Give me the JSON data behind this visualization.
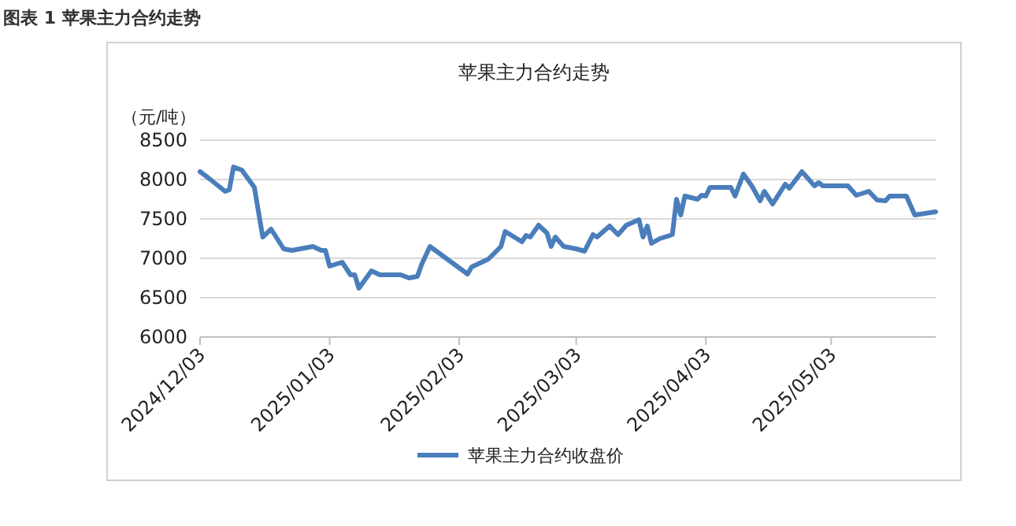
{
  "chart_data": {
    "type": "line",
    "title": "苹果主力合约走势",
    "ylabel": "（元/吨）",
    "annotations": [
      "图表 1  苹果主力合约走势"
    ],
    "x": [
      "2024-12-03",
      "2024-12-05",
      "2024-12-09",
      "2024-12-10",
      "2024-12-11",
      "2024-12-13",
      "2024-12-16",
      "2024-12-18",
      "2024-12-20",
      "2024-12-23",
      "2024-12-25",
      "2024-12-27",
      "2024-12-30",
      "2025-01-01",
      "2025-01-02",
      "2025-01-03",
      "2025-01-06",
      "2025-01-08",
      "2025-01-09",
      "2025-01-10",
      "2025-01-13",
      "2025-01-15",
      "2025-01-20",
      "2025-01-22",
      "2025-01-24",
      "2025-01-25",
      "2025-01-27",
      "2025-02-05",
      "2025-02-06",
      "2025-02-10",
      "2025-02-13",
      "2025-02-14",
      "2025-02-18",
      "2025-02-19",
      "2025-02-20",
      "2025-02-22",
      "2025-02-24",
      "2025-02-25",
      "2025-02-26",
      "2025-02-28",
      "2025-03-03",
      "2025-03-05",
      "2025-03-07",
      "2025-03-08",
      "2025-03-11",
      "2025-03-13",
      "2025-03-15",
      "2025-03-18",
      "2025-03-19",
      "2025-03-20",
      "2025-03-21",
      "2025-03-23",
      "2025-03-26",
      "2025-03-27",
      "2025-03-28",
      "2025-03-29",
      "2025-04-01",
      "2025-04-02",
      "2025-04-03",
      "2025-04-04",
      "2025-04-09",
      "2025-04-10",
      "2025-04-12",
      "2025-04-14",
      "2025-04-16",
      "2025-04-17",
      "2025-04-19",
      "2025-04-22",
      "2025-04-23",
      "2025-04-26",
      "2025-04-29",
      "2025-04-30",
      "2025-05-01",
      "2025-05-07",
      "2025-05-09",
      "2025-05-12",
      "2025-05-14",
      "2025-05-16",
      "2025-05-17",
      "2025-05-21",
      "2025-05-23",
      "2025-05-28"
    ],
    "series": [
      {
        "name": "苹果主力合约收盘价",
        "color": "#4a7ebb",
        "values": [
          8100,
          8020,
          7850,
          7870,
          8160,
          8120,
          7900,
          7270,
          7370,
          7120,
          7100,
          7120,
          7150,
          7100,
          7100,
          6900,
          6950,
          6790,
          6790,
          6620,
          6840,
          6790,
          6790,
          6750,
          6770,
          6920,
          7150,
          6800,
          6890,
          6990,
          7150,
          7340,
          7210,
          7290,
          7270,
          7420,
          7320,
          7150,
          7270,
          7150,
          7120,
          7090,
          7300,
          7270,
          7410,
          7300,
          7420,
          7490,
          7270,
          7410,
          7190,
          7250,
          7300,
          7750,
          7550,
          7790,
          7750,
          7800,
          7790,
          7900,
          7900,
          7790,
          8070,
          7920,
          7730,
          7850,
          7690,
          7940,
          7890,
          8100,
          7920,
          7960,
          7920,
          7920,
          7800,
          7850,
          7740,
          7730,
          7790,
          7790,
          7550,
          7590
        ]
      }
    ],
    "xlim": [
      "2024-12-03",
      "2025-05-28"
    ],
    "xticks": [
      {
        "value": "2024-12-03",
        "label": "2024/12/03"
      },
      {
        "value": "2025-01-03",
        "label": "2025/01/03"
      },
      {
        "value": "2025-02-03",
        "label": "2025/02/03"
      },
      {
        "value": "2025-03-03",
        "label": "2025/03/03"
      },
      {
        "value": "2025-04-03",
        "label": "2025/04/03"
      },
      {
        "value": "2025-05-03",
        "label": "2025/05/03"
      }
    ],
    "ylim": [
      6000,
      8500
    ],
    "yticks": [
      6000,
      6500,
      7000,
      7500,
      8000,
      8500
    ],
    "grid": "y",
    "legend": "bottom",
    "marker": "none",
    "line_style": "solid"
  }
}
